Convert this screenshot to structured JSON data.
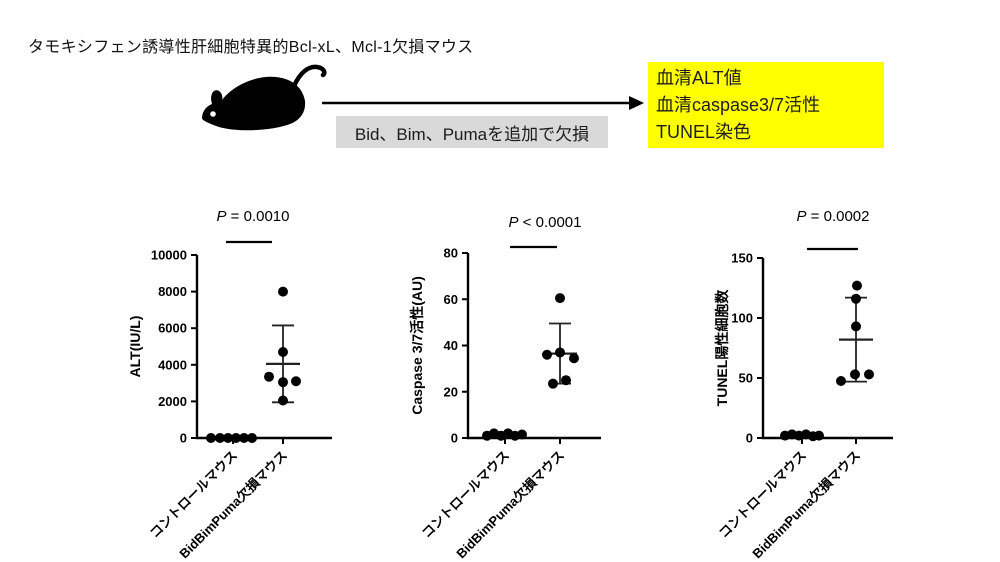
{
  "title": "タモキシフェン誘導性肝細胞特異的Bcl-xL、Mcl-1欠損マウス",
  "diagram": {
    "mouse_icon": "mouse-silhouette",
    "arrow_label": "Bid、Bim、Pumaを追加で欠損",
    "gray_box_bg": "#d9d9d9",
    "outcome_box": {
      "bg": "#ffff00",
      "lines": [
        "血清ALT値",
        "血清caspase3/7活性",
        "TUNEL染色"
      ]
    }
  },
  "colors": {
    "points": "#000000",
    "axis": "#000000",
    "highlight_yellow": "#ffff00",
    "label_gray": "#d9d9d9"
  },
  "chart_data": [
    {
      "type": "scatter",
      "p_label": "P = 0.0010",
      "ylabel": "ALT(IU/L)",
      "ylim": [
        0,
        10000
      ],
      "yticks": [
        0,
        2000,
        4000,
        6000,
        8000,
        10000
      ],
      "categories": [
        "コントロールマウス",
        "BidBimPuma欠損マウス"
      ],
      "groups": [
        {
          "name": "コントロールマウス",
          "points": [
            {
              "v": 0,
              "dx": -22
            },
            {
              "v": 0,
              "dx": -13
            },
            {
              "v": 0,
              "dx": -5
            },
            {
              "v": 0,
              "dx": 3
            },
            {
              "v": 0,
              "dx": 11
            },
            {
              "v": 0,
              "dx": 19
            }
          ]
        },
        {
          "name": "BidBimPuma欠損マウス",
          "mean": 4050,
          "sd_low": 1950,
          "sd_high": 6150,
          "points": [
            {
              "v": 8000,
              "dx": 0
            },
            {
              "v": 4700,
              "dx": 0
            },
            {
              "v": 3350,
              "dx": -14
            },
            {
              "v": 3050,
              "dx": 0
            },
            {
              "v": 3100,
              "dx": 13
            },
            {
              "v": 2050,
              "dx": 0
            }
          ]
        }
      ]
    },
    {
      "type": "scatter",
      "p_label": "P < 0.0001",
      "ylabel": "Caspase 3/7活性(AU)",
      "ylim": [
        0,
        80
      ],
      "yticks": [
        0,
        20,
        40,
        60,
        80
      ],
      "categories": [
        "コントロールマウス",
        "BidBimPuma欠損マウス"
      ],
      "groups": [
        {
          "name": "コントロールマウス",
          "points": [
            {
              "v": 1,
              "dx": -18
            },
            {
              "v": 2,
              "dx": -11
            },
            {
              "v": 1,
              "dx": -4
            },
            {
              "v": 2,
              "dx": 3
            },
            {
              "v": 1,
              "dx": 10
            },
            {
              "v": 1.5,
              "dx": 17
            }
          ]
        },
        {
          "name": "BidBimPuma欠損マウス",
          "mean": 36.5,
          "sd_low": 23.5,
          "sd_high": 49.5,
          "points": [
            {
              "v": 60.5,
              "dx": 0
            },
            {
              "v": 36,
              "dx": -13
            },
            {
              "v": 37,
              "dx": 0
            },
            {
              "v": 34.5,
              "dx": 14
            },
            {
              "v": 23.5,
              "dx": -7
            },
            {
              "v": 25,
              "dx": 6
            }
          ]
        }
      ]
    },
    {
      "type": "scatter",
      "p_label": "P = 0.0002",
      "ylabel": "TUNEL陽性細胞数",
      "ylim": [
        0,
        150
      ],
      "yticks": [
        0,
        50,
        100,
        150
      ],
      "categories": [
        "コントロールマウス",
        "BidBimPuma欠損マウス"
      ],
      "groups": [
        {
          "name": "コントロールマウス",
          "points": [
            {
              "v": 2,
              "dx": -17
            },
            {
              "v": 3,
              "dx": -10
            },
            {
              "v": 2,
              "dx": -3
            },
            {
              "v": 3,
              "dx": 4
            },
            {
              "v": 1.5,
              "dx": 11
            },
            {
              "v": 2,
              "dx": 17
            }
          ]
        },
        {
          "name": "BidBimPuma欠損マウス",
          "mean": 82,
          "sd_low": 47,
          "sd_high": 117,
          "points": [
            {
              "v": 127,
              "dx": 1
            },
            {
              "v": 116,
              "dx": 0
            },
            {
              "v": 93,
              "dx": 0
            },
            {
              "v": 53,
              "dx": -1
            },
            {
              "v": 53,
              "dx": 13
            },
            {
              "v": 47.5,
              "dx": -15
            }
          ]
        }
      ]
    }
  ]
}
